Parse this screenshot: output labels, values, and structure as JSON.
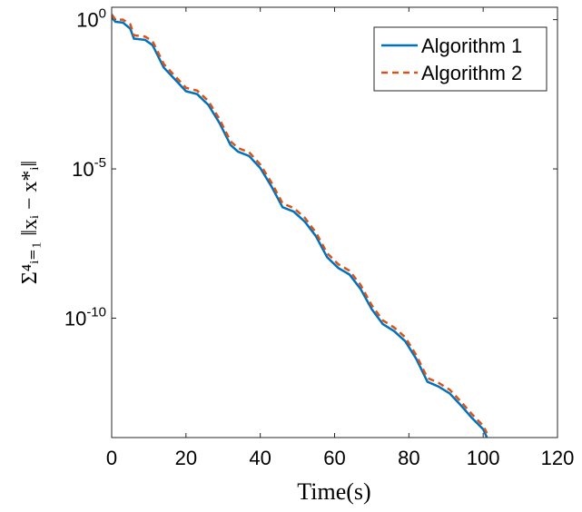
{
  "chart_data": {
    "type": "line",
    "xlabel": "Time(s)",
    "ylabel": "Σ⁴ᵢ₌₁ ‖xᵢ − x*ᵢ‖",
    "x": [
      0,
      1,
      3,
      5,
      6,
      9,
      11,
      14,
      17,
      20,
      23,
      26,
      29,
      32,
      34,
      37,
      40,
      43,
      46,
      49,
      52,
      55,
      58,
      61,
      64,
      67,
      70,
      73,
      76,
      79,
      82,
      85,
      88,
      91,
      94,
      97,
      100,
      101
    ],
    "series": [
      {
        "name": "Algorithm 1",
        "color": "#0072BD",
        "dash": false,
        "values": [
          1.2,
          0.85,
          0.8,
          0.5,
          0.23,
          0.21,
          0.14,
          0.025,
          0.01,
          0.004,
          0.0032,
          0.0014,
          0.00035,
          6.3e-05,
          3.8e-05,
          2.7e-05,
          1.07e-05,
          2.6e-06,
          5.2e-07,
          3.7e-07,
          1.7e-07,
          5.5e-08,
          1.1e-08,
          4.8e-09,
          2.9e-09,
          9.5e-10,
          2e-10,
          6.3e-11,
          3.7e-11,
          1.7e-11,
          4.3e-12,
          7.4e-13,
          5.1e-13,
          3e-13,
          1.2e-13,
          4.5e-14,
          1.9e-14,
          1e-14
        ]
      },
      {
        "name": "Algorithm 2",
        "color": "#D95319",
        "dash": true,
        "values": [
          1.5,
          1.0,
          1.0,
          0.7,
          0.3,
          0.27,
          0.19,
          0.033,
          0.013,
          0.0052,
          0.0042,
          0.0019,
          0.00047,
          8.4e-05,
          5e-05,
          3.6e-05,
          1.4e-05,
          3.5e-06,
          7e-07,
          4.9e-07,
          2.3e-07,
          7.3e-08,
          1.5e-08,
          6.4e-09,
          3.9e-09,
          1.3e-09,
          2.7e-10,
          8.4e-11,
          4.9e-11,
          2.3e-11,
          5.7e-12,
          9.9e-13,
          6.8e-13,
          4e-13,
          1.6e-13,
          6e-14,
          2.5e-14,
          1.4e-14
        ]
      }
    ],
    "xlim": [
      0,
      120
    ],
    "xticks": [
      0,
      20,
      40,
      60,
      80,
      100,
      120
    ],
    "ylim": [
      1e-14,
      2.6
    ],
    "log_y": true,
    "yticks": [
      {
        "value": 1,
        "label": "10^0"
      },
      {
        "value": 1e-05,
        "label": "10^-5"
      },
      {
        "value": 1e-10,
        "label": "10^-10"
      }
    ],
    "grid": false,
    "legend": "upper right"
  }
}
